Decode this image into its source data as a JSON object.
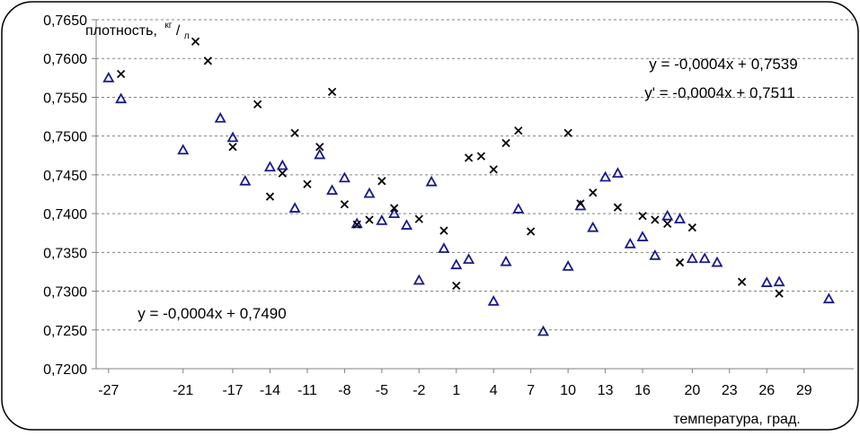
{
  "chart_data": {
    "type": "scatter",
    "title": "",
    "xlabel": "температура, град.",
    "ylabel_main": "плотность,",
    "ylabel_unit_num": "кг",
    "ylabel_unit_den": "л",
    "ylim": [
      0.72,
      0.765
    ],
    "xlim": [
      -28,
      33
    ],
    "y_ticks": [
      "0,7650",
      "0,7600",
      "0,7550",
      "0,7500",
      "0,7450",
      "0,7400",
      "0,7350",
      "0,7300",
      "0,7250",
      "0,7200"
    ],
    "y_tick_values": [
      0.765,
      0.76,
      0.755,
      0.75,
      0.745,
      0.74,
      0.735,
      0.73,
      0.725,
      0.72
    ],
    "x_ticks": [
      "-27",
      "-21",
      "-17",
      "-14",
      "-11",
      "-8",
      "-5",
      "-2",
      "1",
      "4",
      "7",
      "10",
      "13",
      "16",
      "20",
      "23",
      "26",
      "29"
    ],
    "x_tick_values": [
      -27,
      -21,
      -17,
      -14,
      -11,
      -8,
      -5,
      -2,
      1,
      4,
      7,
      10,
      13,
      16,
      20,
      23,
      26,
      29
    ],
    "grid": "horizontal",
    "annotations": [
      {
        "text": "y = -0,0004x + 0,7539",
        "position": "top-right"
      },
      {
        "text": "y' = -0,0004x + 0,7511",
        "position": "top-right"
      },
      {
        "text": "y = -0,0004x + 0,7490",
        "position": "bottom-left"
      }
    ],
    "series": [
      {
        "marker": "triangle",
        "color": "#1a1a8c",
        "points": [
          [
            -27,
            0.7575
          ],
          [
            -26,
            0.7548
          ],
          [
            -21,
            0.7482
          ],
          [
            -18,
            0.7523
          ],
          [
            -17,
            0.7498
          ],
          [
            -16,
            0.7442
          ],
          [
            -14,
            0.746
          ],
          [
            -13,
            0.7462
          ],
          [
            -12,
            0.7407
          ],
          [
            -10,
            0.7476
          ],
          [
            -9,
            0.743
          ],
          [
            -8,
            0.7446
          ],
          [
            -7,
            0.7387
          ],
          [
            -6,
            0.7426
          ],
          [
            -5,
            0.7391
          ],
          [
            -4,
            0.74
          ],
          [
            -3,
            0.7385
          ],
          [
            -2,
            0.7314
          ],
          [
            -1,
            0.7441
          ],
          [
            0,
            0.7355
          ],
          [
            1,
            0.7334
          ],
          [
            2,
            0.7341
          ],
          [
            4,
            0.7287
          ],
          [
            5,
            0.7338
          ],
          [
            6,
            0.7406
          ],
          [
            8,
            0.7248
          ],
          [
            10,
            0.7332
          ],
          [
            11,
            0.741
          ],
          [
            12,
            0.7382
          ],
          [
            13,
            0.7447
          ],
          [
            14,
            0.7452
          ],
          [
            15,
            0.7361
          ],
          [
            16,
            0.737
          ],
          [
            17,
            0.7346
          ],
          [
            18,
            0.7397
          ],
          [
            19,
            0.7393
          ],
          [
            20,
            0.7342
          ],
          [
            21,
            0.7342
          ],
          [
            22,
            0.7337
          ],
          [
            26,
            0.7311
          ],
          [
            27,
            0.7312
          ],
          [
            31,
            0.729
          ]
        ]
      },
      {
        "marker": "cross",
        "color": "#000000",
        "points": [
          [
            -26,
            0.758
          ],
          [
            -20,
            0.7622
          ],
          [
            -19,
            0.7597
          ],
          [
            -17,
            0.7486
          ],
          [
            -15,
            0.7541
          ],
          [
            -14,
            0.7422
          ],
          [
            -13,
            0.7452
          ],
          [
            -12,
            0.7504
          ],
          [
            -11,
            0.7438
          ],
          [
            -10,
            0.7486
          ],
          [
            -9,
            0.7557
          ],
          [
            -8,
            0.7412
          ],
          [
            -7,
            0.7386
          ],
          [
            -6,
            0.7392
          ],
          [
            -5,
            0.7442
          ],
          [
            -4,
            0.7407
          ],
          [
            -2,
            0.7393
          ],
          [
            0,
            0.7378
          ],
          [
            1,
            0.7307
          ],
          [
            2,
            0.7472
          ],
          [
            3,
            0.7474
          ],
          [
            4,
            0.7457
          ],
          [
            5,
            0.7491
          ],
          [
            6,
            0.7507
          ],
          [
            7,
            0.7377
          ],
          [
            10,
            0.7504
          ],
          [
            11,
            0.7413
          ],
          [
            12,
            0.7427
          ],
          [
            14,
            0.7408
          ],
          [
            16,
            0.7397
          ],
          [
            17,
            0.7392
          ],
          [
            18,
            0.7387
          ],
          [
            19,
            0.7337
          ],
          [
            20,
            0.7382
          ],
          [
            24,
            0.7312
          ],
          [
            27,
            0.7297
          ]
        ]
      }
    ]
  }
}
